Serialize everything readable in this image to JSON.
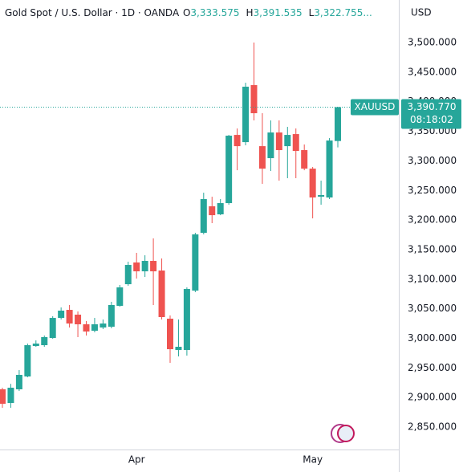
{
  "chart_data": {
    "type": "candlestick",
    "header": {
      "symbol": "Gold Spot / U.S. Dollar · 1D · OANDA",
      "ohlc": [
        {
          "key": "O",
          "value": "3,333.575"
        },
        {
          "key": "H",
          "value": "3,391.535"
        },
        {
          "key": "L",
          "value": "3,322.755..."
        }
      ]
    },
    "currency": "USD",
    "price_tag": {
      "symbol": "XAUUSD",
      "price": "3,390.770",
      "countdown": "08:18:02"
    },
    "categories": [
      null,
      null,
      null,
      null,
      null,
      null,
      null,
      null,
      null,
      null,
      null,
      null,
      null,
      null,
      null,
      null,
      "Apr",
      null,
      null,
      null,
      null,
      null,
      null,
      null,
      null,
      null,
      null,
      null,
      null,
      null,
      null,
      null,
      null,
      null,
      null,
      null,
      null,
      "May",
      null,
      null,
      null
    ],
    "open": [
      2913.8,
      2890.7,
      2913.8,
      2935.5,
      2987.0,
      2988.4,
      3000.6,
      3034.5,
      3048.1,
      3040.0,
      3023.7,
      3012.8,
      3018.3,
      3019.6,
      3054.9,
      3091.5,
      3128.2,
      3113.3,
      3130.9,
      3114.6,
      3033.2,
      2980.3,
      2980.3,
      3080.7,
      3178.4,
      3223.2,
      3209.6,
      3228.6,
      3343.9,
      3331.7,
      3428.1,
      3324.9,
      3304.6,
      3348.0,
      3324.9,
      3345.3,
      3318.2,
      3286.9,
      3239.4,
      3238.1,
      3333.575
    ],
    "high": [
      2916.5,
      2923.0,
      2946.3,
      2991.1,
      2996.5,
      3004.7,
      3037.3,
      3052.2,
      3056.3,
      3045.4,
      3029.1,
      3034.5,
      3031.8,
      3061.7,
      3090.2,
      3129.5,
      3144.5,
      3140.4,
      3168.9,
      3135.0,
      3038.6,
      3031.8,
      3086.1,
      3178.4,
      3246.2,
      3239.4,
      3235.4,
      3343.9,
      3354.8,
      3432.1,
      3500.0,
      3380.6,
      3368.4,
      3368.4,
      3357.5,
      3354.8,
      3327.7,
      3289.7,
      3266.6,
      3338.5,
      3391.535
    ],
    "low": [
      2882.6,
      2882.6,
      2911.0,
      2934.1,
      2985.7,
      2985.7,
      2999.3,
      3031.8,
      3018.3,
      3002.0,
      3004.7,
      3010.1,
      3015.6,
      3016.9,
      3053.5,
      3088.8,
      3101.0,
      3103.8,
      3056.3,
      3031.8,
      2958.6,
      2969.4,
      2970.8,
      3078.0,
      3175.7,
      3194.7,
      3208.2,
      3225.9,
      3284.2,
      3326.3,
      3368.4,
      3261.2,
      3282.9,
      3266.6,
      3270.7,
      3270.7,
      3284.2,
      3202.8,
      3225.9,
      3235.4,
      3322.755
    ],
    "close": [
      2889.3,
      2916.5,
      2938.2,
      2988.4,
      2991.1,
      3002.0,
      3034.5,
      3046.8,
      3025.0,
      3023.7,
      3011.5,
      3023.7,
      3025.0,
      3056.3,
      3086.1,
      3124.1,
      3113.3,
      3130.9,
      3113.3,
      3035.9,
      2981.6,
      2985.7,
      3083.4,
      3175.7,
      3235.4,
      3208.2,
      3228.6,
      3342.6,
      3324.9,
      3425.4,
      3380.6,
      3286.9,
      3348.0,
      3318.2,
      3343.9,
      3316.8,
      3286.9,
      3238.1,
      3242.2,
      3334.4,
      3390.77
    ],
    "up_color": "#26a69a",
    "down_color": "#ef5350",
    "ylim": [
      2812,
      3572
    ],
    "yticks": [
      {
        "value": 2850,
        "label": "2,850.000"
      },
      {
        "value": 2900,
        "label": "2,900.000"
      },
      {
        "value": 2950,
        "label": "2,950.000"
      },
      {
        "value": 3000,
        "label": "3,000.000"
      },
      {
        "value": 3050,
        "label": "3,050.000"
      },
      {
        "value": 3100,
        "label": "3,100.000"
      },
      {
        "value": 3150,
        "label": "3,150.000"
      },
      {
        "value": 3200,
        "label": "3,200.000"
      },
      {
        "value": 3250,
        "label": "3,250.000"
      },
      {
        "value": 3300,
        "label": "3,300.000"
      },
      {
        "value": 3350,
        "label": "3,350.000"
      },
      {
        "value": 3400,
        "label": "3,400.000"
      },
      {
        "value": 3450,
        "label": "3,450.000"
      },
      {
        "value": 3500,
        "label": "3,500.000"
      }
    ],
    "grid": false
  }
}
